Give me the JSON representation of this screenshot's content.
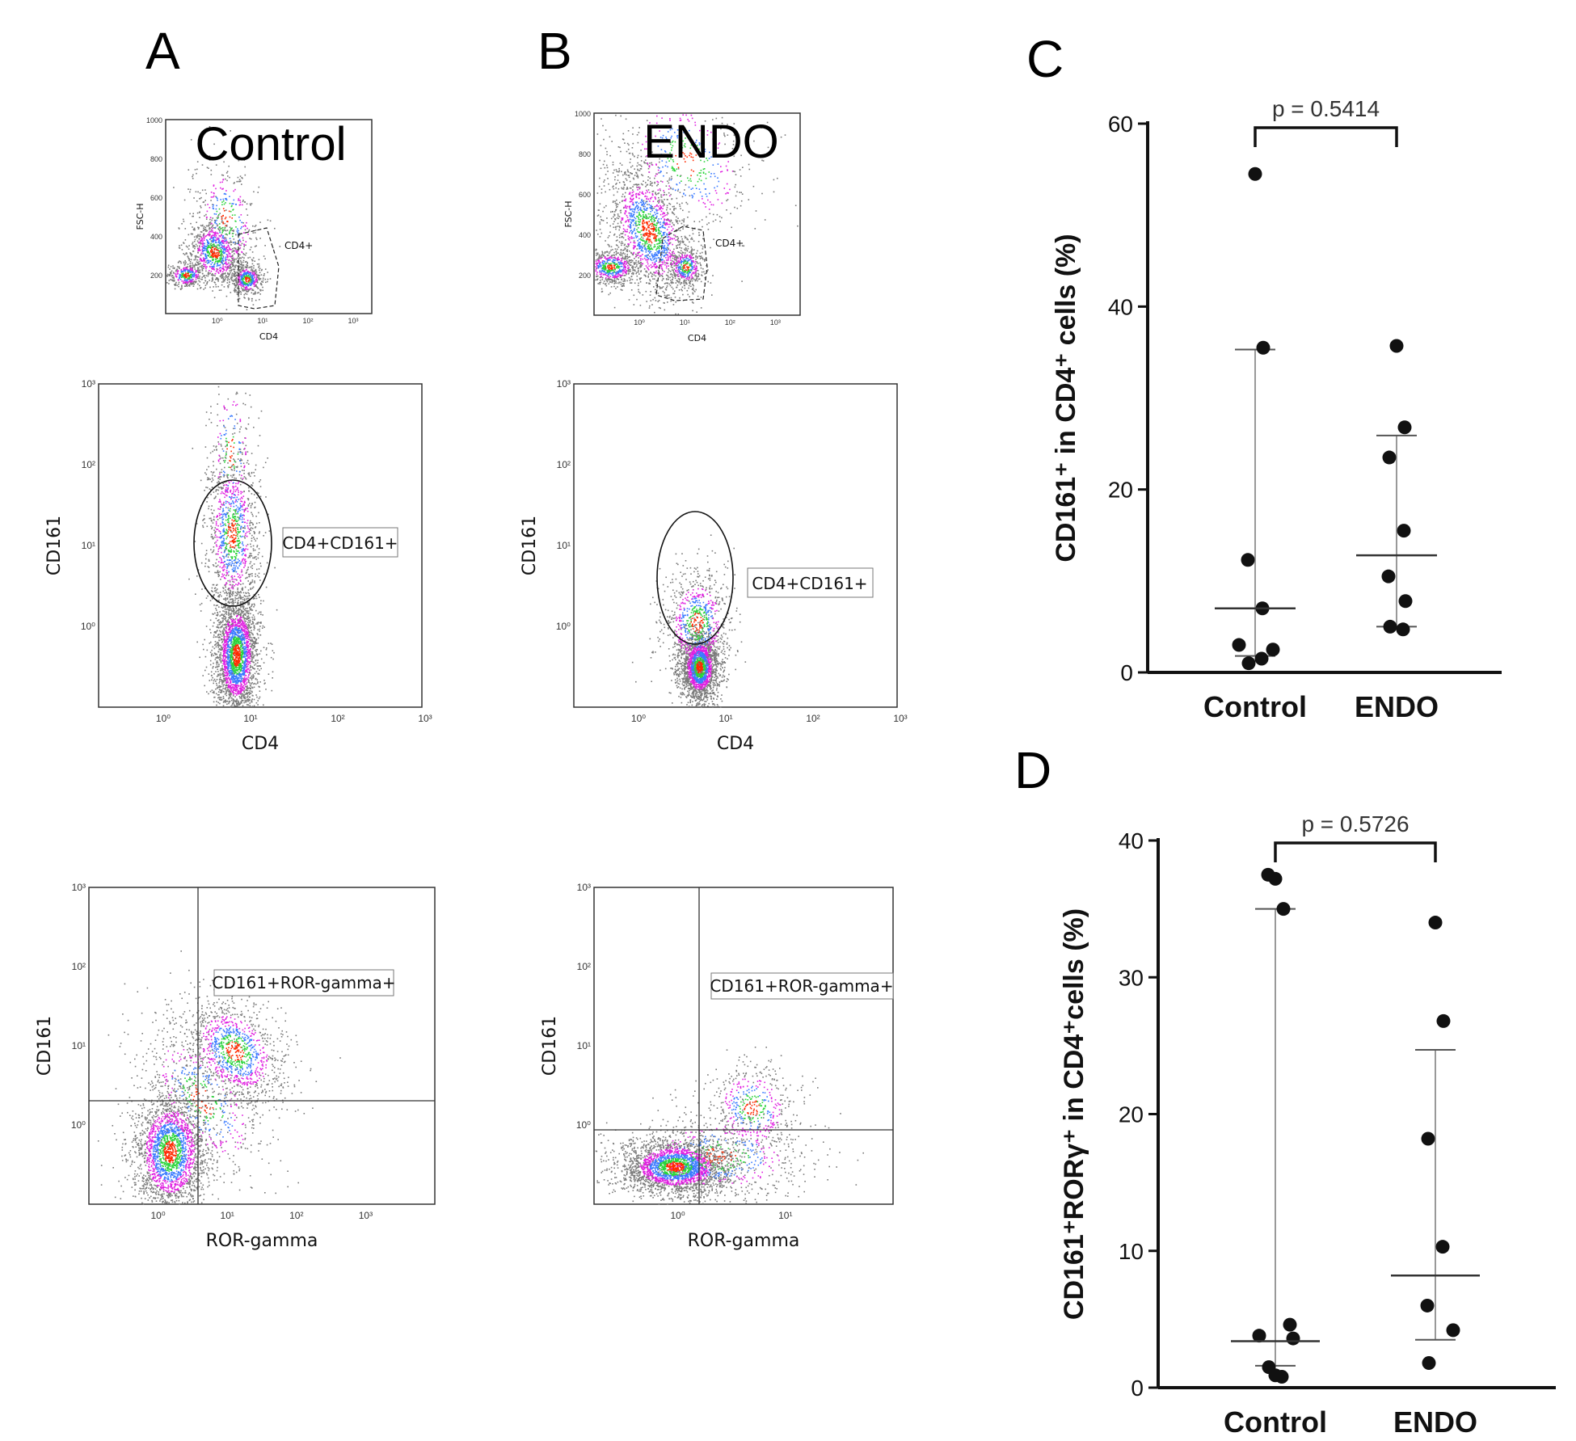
{
  "panels": {
    "A": {
      "letter": "A",
      "title": "Control",
      "gate1": {
        "ylabel": "FSC-H",
        "xlabel": "CD4",
        "gate": "CD4+",
        "yticks": [
          "1000",
          "800",
          "600",
          "400",
          "200"
        ],
        "xticks": [
          "10⁰",
          "10¹",
          "10²",
          "10³"
        ]
      },
      "gate2": {
        "ylabel": "CD161",
        "xlabel": "CD4",
        "gate": "CD4+CD161+",
        "yticks": [
          "10³",
          "10²",
          "10¹",
          "10⁰"
        ],
        "xticks": [
          "10⁰",
          "10¹",
          "10²",
          "10³"
        ]
      },
      "gate3": {
        "ylabel": "CD161",
        "xlabel": "ROR-gamma",
        "gate": "CD161+ROR-gamma+",
        "yticks": [
          "10³",
          "10²",
          "10¹",
          "10⁰"
        ],
        "xticks": [
          "10⁰",
          "10¹",
          "10²",
          "10³"
        ]
      }
    },
    "B": {
      "letter": "B",
      "title": "ENDO",
      "gate1": {
        "ylabel": "FSC-H",
        "xlabel": "CD4",
        "gate": "CD4+",
        "yticks": [
          "1000",
          "800",
          "600",
          "400",
          "200"
        ],
        "xticks": [
          "10⁰",
          "10¹",
          "10²",
          "10³"
        ]
      },
      "gate2": {
        "ylabel": "CD161",
        "xlabel": "CD4",
        "gate": "CD4+CD161+",
        "yticks": [
          "10³",
          "10²",
          "10¹",
          "10⁰"
        ],
        "xticks": [
          "10⁰",
          "10¹",
          "10²",
          "10³"
        ]
      },
      "gate3": {
        "ylabel": "CD161",
        "xlabel": "ROR-gamma",
        "gate": "CD161+ROR-gamma+",
        "yticks": [
          "10³",
          "10²",
          "10¹",
          "10⁰"
        ],
        "xticks": [
          "10⁰",
          "10¹"
        ]
      }
    },
    "C": {
      "letter": "C"
    },
    "D": {
      "letter": "D"
    }
  },
  "chart_data": [
    {
      "type": "scatter",
      "panel": "C",
      "categories": [
        "Control",
        "ENDO"
      ],
      "ylabel": "CD161⁺ in CD4⁺ cells (%)",
      "ylim": [
        0,
        60
      ],
      "yticks": [
        0,
        20,
        40,
        60
      ],
      "points": {
        "Control": [
          54.5,
          35.5,
          12.3,
          7.0,
          3.0,
          2.5,
          1.0,
          1.5
        ],
        "ENDO": [
          35.7,
          26.8,
          23.5,
          15.5,
          10.5,
          7.8,
          5.0,
          4.7
        ]
      },
      "median": {
        "Control": 7.0,
        "ENDO": 12.8
      },
      "range": {
        "Control": [
          1.8,
          35.3
        ],
        "ENDO": [
          5.0,
          25.9
        ]
      },
      "comparison": {
        "label": "p = 0.5414",
        "p_symbol": "p",
        "p_value": "= 0.5414"
      }
    },
    {
      "type": "scatter",
      "panel": "D",
      "categories": [
        "Control",
        "ENDO"
      ],
      "ylabel": "CD161⁺RORγ⁺ in CD4⁺cells (%)",
      "ylim": [
        0,
        40
      ],
      "yticks": [
        0,
        10,
        20,
        30,
        40
      ],
      "points": {
        "Control": [
          37.2,
          35.0,
          37.5,
          4.6,
          3.8,
          3.6,
          1.5,
          0.8,
          0.9
        ],
        "ENDO": [
          34.0,
          26.8,
          18.2,
          10.3,
          6.0,
          4.2,
          1.8
        ]
      },
      "median": {
        "Control": 3.4,
        "ENDO": 8.2
      },
      "range": {
        "Control": [
          1.6,
          35.0
        ],
        "ENDO": [
          3.5,
          24.7
        ]
      },
      "comparison": {
        "label": "p = 0.5726",
        "p_symbol": "p",
        "p_value": "= 0.5726"
      }
    }
  ]
}
